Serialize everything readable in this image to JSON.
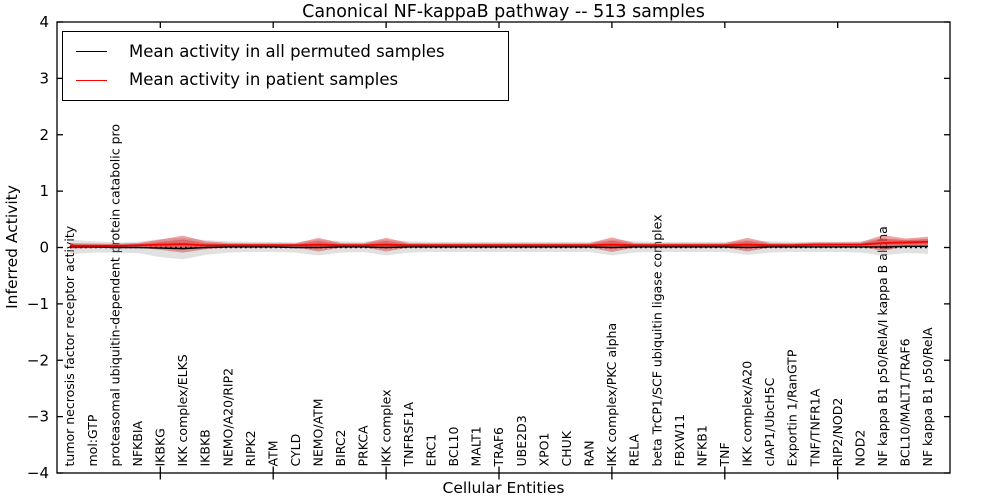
{
  "chart_data": {
    "type": "line",
    "title": "Canonical NF-kappaB pathway -- 513 samples",
    "xlabel": "Cellular Entities",
    "ylabel": "Inferred Activity",
    "ylim": [
      -4,
      4
    ],
    "yticks": [
      4,
      3,
      2,
      1,
      0,
      -1,
      -2,
      -3,
      -4
    ],
    "xtick_step": 5,
    "grid": false,
    "legend_position": "upper left",
    "legend": [
      {
        "label": "Mean activity in all permuted samples",
        "color": "#000000"
      },
      {
        "label": "Mean activity in patient samples",
        "color": "#ff0000"
      }
    ],
    "categories": [
      "tumor necrosis factor receptor activity",
      "mol:GTP",
      "proteasomal ubiquitin-dependent protein catabolic pro",
      "NFKBIA",
      "IKBKG",
      "IKK complex/ELKS",
      "IKBKB",
      "NEMO/A20/RIP2",
      "RIPK2",
      "ATM",
      "CYLD",
      "NEMO/ATM",
      "BIRC2",
      "PRKCA",
      "IKK complex",
      "TNFRSF1A",
      "ERC1",
      "BCL10",
      "MALT1",
      "TRAF6",
      "UBE2D3",
      "XPO1",
      "CHUK",
      "RAN",
      "IKK complex/PKC alpha",
      "RELA",
      "beta TrCP1/SCF ubiquitin ligase complex",
      "FBXW11",
      "NFKB1",
      "TNF",
      "IKK complex/A20",
      "cIAP1/UbcH5C",
      "Exportin 1/RanGTP",
      "TNF/TNFR1A",
      "RIP2/NOD2",
      "NOD2",
      "NF kappa B1 p50/RelA/I kappa B alpha",
      "BCL10/MALT1/TRAF6",
      "NF kappa B1 p50/RelA"
    ],
    "series": [
      {
        "name": "Mean activity in all permuted samples",
        "color": "#000000",
        "style": "solid",
        "values": [
          0.01,
          0.01,
          0.0,
          0.0,
          -0.01,
          -0.02,
          0.0,
          0.01,
          0.01,
          0.01,
          0.0,
          0.0,
          0.01,
          0.01,
          0.0,
          0.01,
          0.01,
          0.01,
          0.01,
          0.01,
          0.01,
          0.01,
          0.01,
          0.01,
          0.0,
          0.01,
          0.01,
          0.01,
          0.01,
          0.01,
          0.0,
          0.01,
          0.01,
          0.01,
          0.01,
          0.01,
          0.01,
          0.02,
          0.02
        ]
      },
      {
        "name": "Mean activity in patient samples",
        "color": "#ff0000",
        "style": "solid",
        "values": [
          0.03,
          0.03,
          0.03,
          0.04,
          0.05,
          0.06,
          0.04,
          0.04,
          0.04,
          0.04,
          0.04,
          0.05,
          0.04,
          0.04,
          0.05,
          0.04,
          0.04,
          0.04,
          0.04,
          0.04,
          0.04,
          0.04,
          0.04,
          0.04,
          0.05,
          0.04,
          0.04,
          0.04,
          0.04,
          0.04,
          0.05,
          0.04,
          0.04,
          0.05,
          0.05,
          0.05,
          0.08,
          0.09,
          0.1
        ]
      }
    ],
    "bands": [
      {
        "name": "permuted-sample-spread",
        "color": "#aaaaaa",
        "opacity": 0.35,
        "half_widths": [
          0.13,
          0.1,
          0.09,
          0.1,
          0.16,
          0.19,
          0.13,
          0.1,
          0.09,
          0.09,
          0.09,
          0.14,
          0.1,
          0.09,
          0.14,
          0.1,
          0.09,
          0.09,
          0.09,
          0.09,
          0.09,
          0.09,
          0.09,
          0.09,
          0.14,
          0.1,
          0.09,
          0.09,
          0.09,
          0.09,
          0.13,
          0.1,
          0.09,
          0.09,
          0.09,
          0.1,
          0.15,
          0.12,
          0.13
        ]
      },
      {
        "name": "patient-sample-spread",
        "color": "#dd3333",
        "opacity": 0.45,
        "half_widths": [
          0.05,
          0.04,
          0.035,
          0.04,
          0.09,
          0.15,
          0.07,
          0.04,
          0.035,
          0.035,
          0.035,
          0.12,
          0.04,
          0.035,
          0.12,
          0.04,
          0.035,
          0.035,
          0.035,
          0.035,
          0.035,
          0.035,
          0.035,
          0.035,
          0.13,
          0.04,
          0.035,
          0.035,
          0.035,
          0.035,
          0.12,
          0.04,
          0.035,
          0.04,
          0.04,
          0.04,
          0.14,
          0.07,
          0.09
        ]
      }
    ],
    "reference_line": {
      "y": 0,
      "style": "dotted",
      "color": "#000000"
    }
  }
}
